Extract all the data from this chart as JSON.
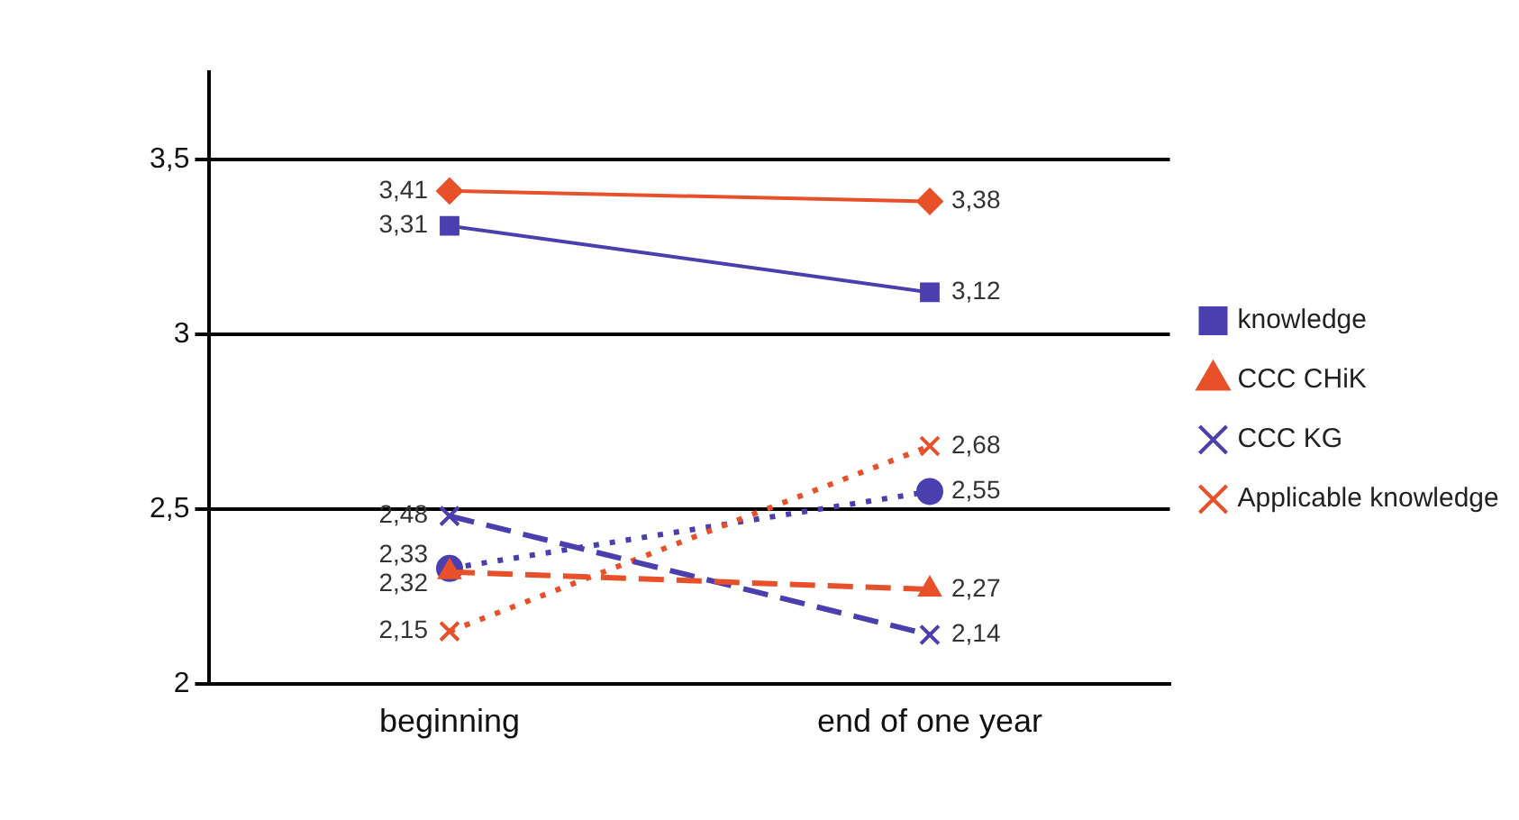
{
  "chart_data": {
    "type": "line",
    "categories": [
      "beginning",
      "end of one year"
    ],
    "ylim": [
      2,
      3.75
    ],
    "yticks": [
      2,
      {
        "value": 2.5,
        "label": "2,5"
      },
      3,
      {
        "value": 3.5,
        "label": "3,5"
      }
    ],
    "grid": "y",
    "legend": "right",
    "series": [
      {
        "color": "#e8502a",
        "values": [
          3.41,
          3.38
        ],
        "value_labels": [
          "3,41",
          "3,38"
        ],
        "marker": "diamond",
        "line_style": "solid"
      },
      {
        "name": "knowledge",
        "color": "#4b3fb0",
        "values": [
          3.31,
          3.12
        ],
        "value_labels": [
          "3,31",
          "3,12"
        ],
        "marker": "square",
        "line_style": "solid"
      },
      {
        "name": "CCC CHiK",
        "color": "#e8502a",
        "values": [
          2.32,
          2.27
        ],
        "value_labels": [
          "2,32",
          "2,27"
        ],
        "marker": "triangle",
        "line_style": "dashed"
      },
      {
        "name": "CCC KG",
        "color": "#4b3fb0",
        "values": [
          2.48,
          2.14
        ],
        "value_labels": [
          "2,48",
          "2,14"
        ],
        "marker": "cross",
        "line_style": "dashed"
      },
      {
        "name": "Applicable knowledge",
        "color": "#e8502a",
        "values": [
          2.15,
          2.68
        ],
        "value_labels": [
          "2,15",
          "2,68"
        ],
        "marker": "cross",
        "line_style": "dotted"
      },
      {
        "color": "#4b3fb0",
        "values": [
          2.33,
          2.55
        ],
        "value_labels": [
          "2,33",
          "2,55"
        ],
        "marker": "circle",
        "line_style": "dotted"
      }
    ]
  }
}
